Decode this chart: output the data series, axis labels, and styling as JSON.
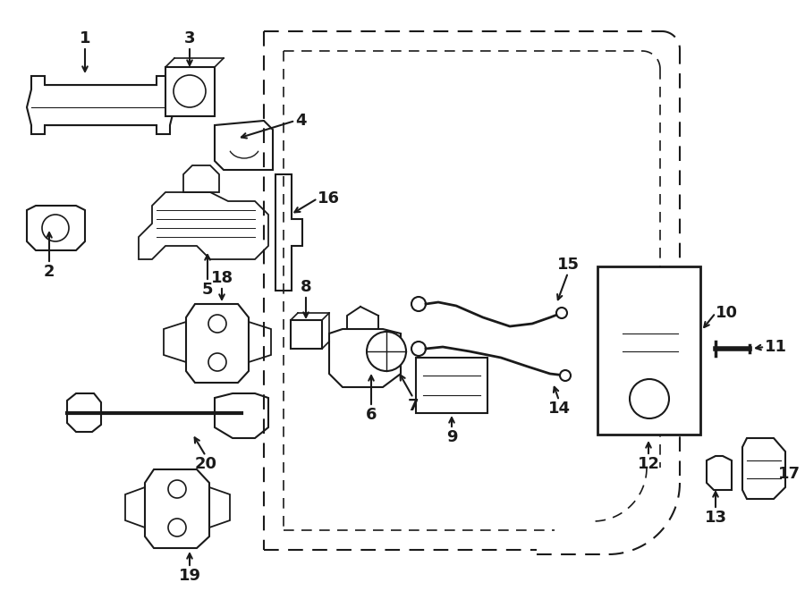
{
  "bg_color": "#ffffff",
  "lc": "#1a1a1a",
  "figsize": [
    9.0,
    6.61
  ],
  "dpi": 100
}
